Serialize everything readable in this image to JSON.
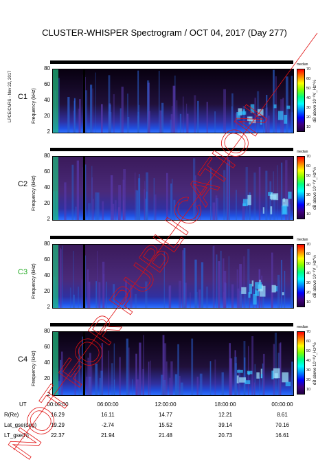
{
  "title": "CLUSTER-WHISPER Spectrogram / OCT 04, 2017 (Day 277)",
  "side_note": "LPCE/CNRS - Nov 22, 2017",
  "watermark": "NOT FOR PUBLICATION",
  "colorbar": {
    "title": "median",
    "ylabel": "dB above 10⁻⁸V_Hz^½",
    "ticks": [
      "70",
      "60",
      "50",
      "40",
      "30",
      "20",
      "10"
    ]
  },
  "chart_data": {
    "type": "heatmap",
    "title": "CLUSTER-WHISPER Spectrogram / OCT 04, 2017 (Day 277)",
    "ylabel": "Frequency (kHz)",
    "yticks": [
      "80",
      "60",
      "40",
      "20",
      "2"
    ],
    "ylim": [
      2,
      80
    ],
    "panels": [
      {
        "name": "C1",
        "color": "#000000"
      },
      {
        "name": "C2",
        "color": "#000000"
      },
      {
        "name": "C3",
        "color": "#22aa22"
      },
      {
        "name": "C4",
        "color": "#000000"
      }
    ],
    "x_ticks": [
      "00:00:00",
      "06:00:00",
      "12:00:00",
      "18:00:00",
      "00:00:00"
    ],
    "orbit_rows": [
      {
        "label": "UT",
        "values": [
          "00:00:00",
          "06:00:00",
          "12:00:00",
          "18:00:00",
          "00:00:00"
        ]
      },
      {
        "label": "R(Re)",
        "values": [
          "16.29",
          "16.11",
          "14.77",
          "12.21",
          "8.61"
        ]
      },
      {
        "label": "Lat_gse(deg)",
        "values": [
          "19.29",
          "-2.74",
          "15.52",
          "39.14",
          "70.16"
        ]
      },
      {
        "label": "LT_gse(h)",
        "values": [
          "22.37",
          "21.94",
          "21.48",
          "20.73",
          "16.61"
        ]
      }
    ]
  }
}
